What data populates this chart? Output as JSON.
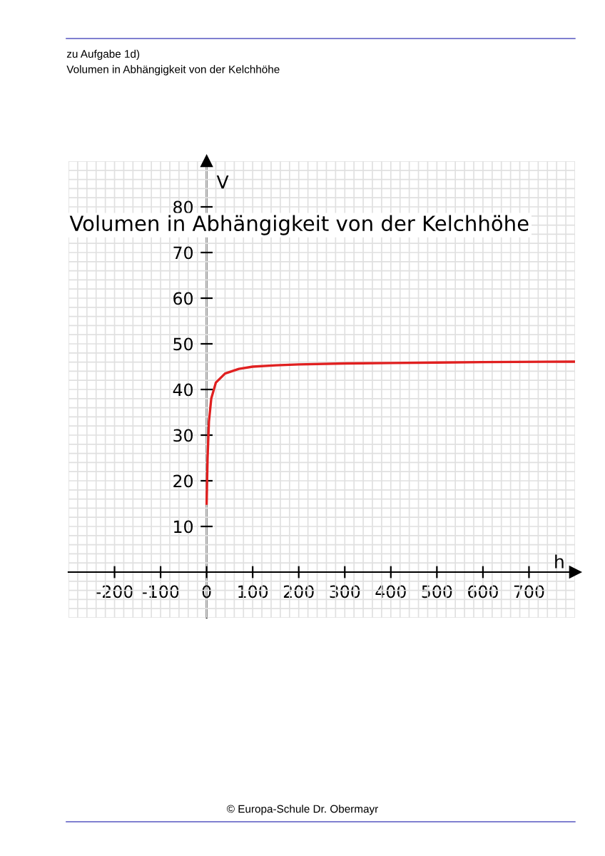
{
  "chart_data": {
    "type": "line",
    "title": "Volumen in Abhängigkeit von der Kelchhöhe",
    "xlabel": "h",
    "ylabel": "V",
    "annotations": [
      "zu Aufgabe 1d)",
      "Volumen in Abhängigkeit von der Kelchhöhe",
      "© Europa-Schule Dr. Obermayr"
    ],
    "series": [
      {
        "color": "#e02020",
        "x": [
          0,
          2,
          5,
          10,
          20,
          40,
          70,
          100,
          150,
          200,
          300,
          400,
          500,
          600,
          800
        ],
        "values": [
          15,
          25,
          33,
          38,
          41.5,
          43.5,
          44.5,
          45,
          45.3,
          45.5,
          45.7,
          45.8,
          45.9,
          46,
          46.1
        ]
      }
    ],
    "xlim": [
      -300,
      800
    ],
    "ylim": [
      -10,
      90
    ],
    "xticks": [
      -200,
      -100,
      0,
      100,
      200,
      300,
      400,
      500,
      600,
      700
    ],
    "yticks": [
      10,
      20,
      30,
      40,
      50,
      60,
      70,
      80
    ],
    "grid": true,
    "marker": "none",
    "line_style": "solid"
  }
}
